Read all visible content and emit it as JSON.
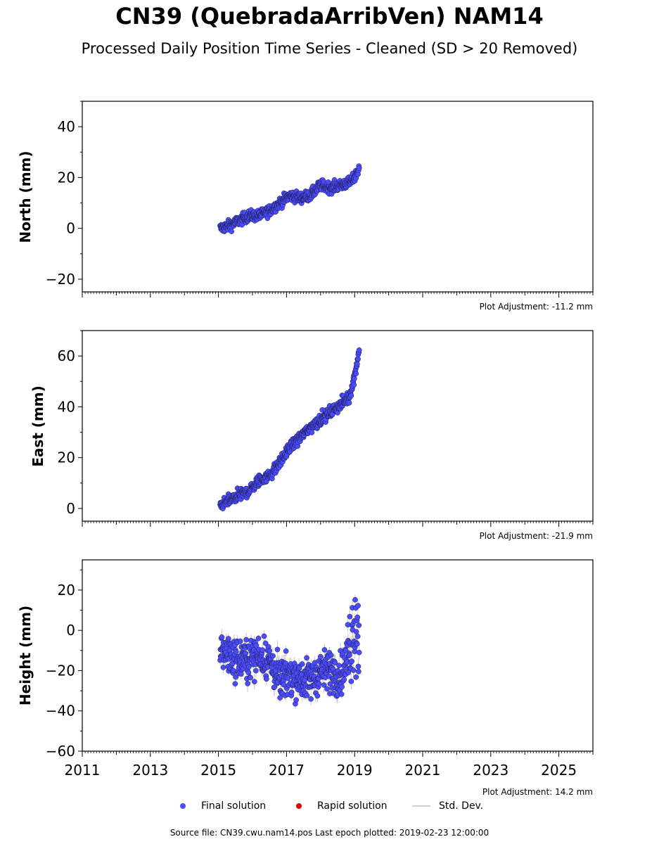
{
  "title": "CN39 (QuebradaArribVen) NAM14",
  "subtitle": "Processed Daily Position Time Series - Cleaned (SD > 20 Removed)",
  "legend": {
    "final": "Final solution",
    "rapid": "Rapid solution",
    "std": "Std. Dev."
  },
  "source": "Source file: CN39.cwu.nam14.pos  Last epoch plotted: 2019-02-23 12:00:00",
  "colors": {
    "final": "#4b4bff",
    "rapid": "#e00000",
    "std": "#c8c8c8"
  },
  "chart_data": [
    {
      "type": "scatter",
      "ylabel": "North (mm)",
      "adjustment": "Plot Adjustment: -11.2 mm",
      "xlim": [
        2011,
        2026
      ],
      "ylim": [
        -25,
        50
      ],
      "yticks": [
        -20,
        0,
        20,
        40
      ],
      "series": [
        {
          "name": "Final solution",
          "x": [
            2015.05,
            2015.3,
            2015.6,
            2015.9,
            2016.2,
            2016.5,
            2016.8,
            2017.1,
            2017.4,
            2017.7,
            2018.0,
            2018.3,
            2018.6,
            2018.85,
            2019.0,
            2019.14
          ],
          "values": [
            0,
            1,
            3,
            5,
            5,
            7,
            10,
            13,
            12,
            13,
            17,
            16,
            17,
            18,
            20,
            24
          ]
        }
      ]
    },
    {
      "type": "scatter",
      "ylabel": "East (mm)",
      "adjustment": "Plot Adjustment: -21.9 mm",
      "xlim": [
        2011,
        2026
      ],
      "ylim": [
        -5,
        70
      ],
      "yticks": [
        0,
        20,
        40,
        60
      ],
      "series": [
        {
          "name": "Final solution",
          "x": [
            2015.05,
            2015.3,
            2015.6,
            2015.9,
            2016.2,
            2016.5,
            2016.8,
            2017.1,
            2017.4,
            2017.7,
            2018.0,
            2018.3,
            2018.6,
            2018.85,
            2019.0,
            2019.14
          ],
          "values": [
            1,
            3,
            5,
            7,
            11,
            13,
            18,
            24,
            28,
            32,
            35,
            38,
            41,
            44,
            52,
            63
          ]
        }
      ]
    },
    {
      "type": "scatter",
      "ylabel": "Height (mm)",
      "adjustment": "Plot Adjustment: 14.2 mm",
      "xlim": [
        2011,
        2026
      ],
      "ylim": [
        -60,
        35
      ],
      "yticks": [
        -60,
        -40,
        -20,
        0,
        20
      ],
      "xticks": [
        "2011",
        "2013",
        "2015",
        "2017",
        "2019",
        "2021",
        "2023",
        "2025"
      ],
      "series": [
        {
          "name": "Final solution",
          "x": [
            2015.05,
            2015.3,
            2015.6,
            2015.9,
            2016.2,
            2016.5,
            2016.8,
            2017.1,
            2017.4,
            2017.7,
            2018.0,
            2018.3,
            2018.6,
            2018.85,
            2019.0,
            2019.14
          ],
          "values": [
            -8,
            -12,
            -15,
            -14,
            -12,
            -15,
            -25,
            -22,
            -24,
            -25,
            -20,
            -20,
            -22,
            -10,
            5,
            -5
          ]
        }
      ]
    }
  ]
}
